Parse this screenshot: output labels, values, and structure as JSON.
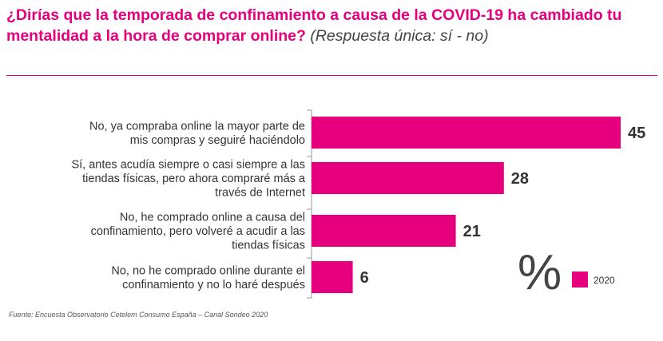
{
  "title": {
    "main": "¿Dirías que la temporada de confinamiento a causa de la COVID-19 ha cambiado tu mentalidad a la hora de comprar online?",
    "note": "(Respuesta única: sí - no)"
  },
  "source": "Fuente: Encuesta Observatorio Cetelem Consumo España – Canal Sondeo 2020",
  "colors": {
    "accent": "#e6007e",
    "text": "#333333",
    "axis": "#9a9a9a"
  },
  "chart_data": {
    "type": "bar",
    "orientation": "horizontal",
    "unit_symbol": "%",
    "categories": [
      [
        "No, ya compraba online la mayor parte de",
        "mis compras y seguiré haciéndolo"
      ],
      [
        "Sí, antes acudía siempre o casi siempre a las",
        "tiendas físicas, pero ahora compraré más a",
        "través de Internet"
      ],
      [
        "No, he comprado online a causa del",
        "confinamiento, pero volveré a acudir a las",
        "tiendas físicas"
      ],
      [
        "No, no he comprado online durante el",
        "confinamiento y no lo haré después"
      ]
    ],
    "series": [
      {
        "name": "2020",
        "color": "#e6007e",
        "values": [
          45,
          28,
          21,
          6
        ]
      }
    ],
    "xlim": [
      0,
      45
    ],
    "legend": "bottom-right"
  }
}
